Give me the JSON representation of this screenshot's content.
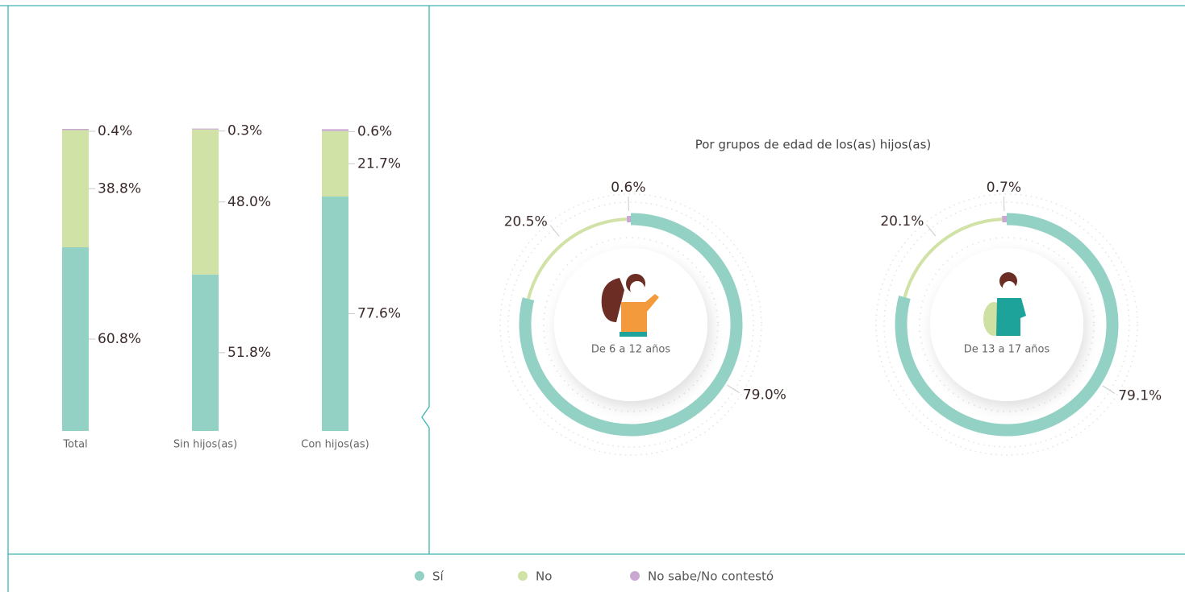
{
  "chart_data": [
    {
      "type": "stacked-bar",
      "categories": [
        "Total",
        "Sin hijos(as)",
        "Con hijos(as)"
      ],
      "series": [
        {
          "name": "Sí",
          "color": "#94d1c5",
          "values": [
            60.8,
            51.8,
            77.6
          ],
          "value_labels": [
            "60.8%",
            "51.8%",
            "77.6%"
          ]
        },
        {
          "name": "No",
          "color": "#d1e2a6",
          "values": [
            38.8,
            48.0,
            21.7
          ],
          "value_labels": [
            "38.8%",
            "48.0%",
            "21.7%"
          ]
        },
        {
          "name": "No sabe/No contestó",
          "color": "#c9a8d4",
          "values": [
            0.4,
            0.3,
            0.6
          ],
          "value_labels": [
            "0.4%",
            "0.3%",
            "0.6%"
          ]
        }
      ]
    },
    {
      "type": "donut",
      "title": "Por grupos de edad de los(as) hijos(as)",
      "categories": [
        "De 6 a 12 años",
        "De 13 a 17 años"
      ],
      "series": [
        {
          "values": [
            79.0,
            79.1
          ],
          "value_labels": [
            "79.0%",
            "79.1%"
          ]
        },
        {
          "values": [
            20.5,
            20.1
          ],
          "value_labels": [
            "20.5%",
            "20.1%"
          ]
        },
        {
          "values": [
            0.6,
            0.7
          ],
          "value_labels": [
            "0.6%",
            "0.7%"
          ]
        }
      ]
    }
  ]
}
